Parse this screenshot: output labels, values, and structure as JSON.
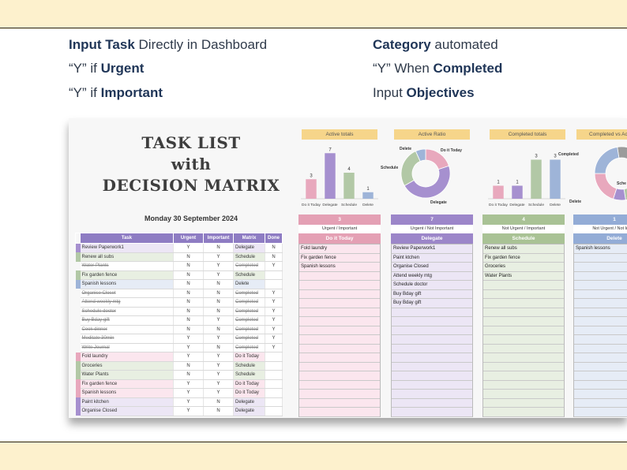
{
  "instructions": {
    "line1_bold1": "Input",
    "line1_bold2": "Task",
    "line1_rest": "Directly in Dashboard",
    "line2_pre": "“Y” if",
    "line2_bold": "Urgent",
    "line3_pre": "“Y” if",
    "line3_bold": "Important",
    "line4_bold": "Category",
    "line4_rest": "automated",
    "line5_pre": "“Y”  When",
    "line5_bold": "Completed",
    "line6_pre": "Input",
    "line6_bold": "Objectives"
  },
  "dashboard": {
    "title_line1": "TASK LIST",
    "title_line2": "with",
    "title_line3": "DECISION MATRIX",
    "date": "Monday 30 September 2024"
  },
  "table": {
    "headers": [
      "Task",
      "Urgent",
      "Important",
      "Matrix",
      "Done"
    ],
    "rows": [
      {
        "task": "Review Paperwork1",
        "urgent": "Y",
        "important": "N",
        "matrix": "Delegate",
        "done": "N",
        "done_flag": false,
        "cat": "delegate"
      },
      {
        "task": "Renew all subs",
        "urgent": "N",
        "important": "Y",
        "matrix": "Schedule",
        "done": "N",
        "done_flag": false,
        "cat": "schedule"
      },
      {
        "task": "Water Plants",
        "urgent": "N",
        "important": "Y",
        "matrix": "Completed",
        "done": "Y",
        "done_flag": true,
        "cat": "none"
      },
      {
        "task": "Fix garden fence",
        "urgent": "N",
        "important": "Y",
        "matrix": "Schedule",
        "done": "",
        "done_flag": false,
        "cat": "schedule"
      },
      {
        "task": "Spanish lessons",
        "urgent": "N",
        "important": "N",
        "matrix": "Delete",
        "done": "",
        "done_flag": false,
        "cat": "delete"
      },
      {
        "task": "Organise Closet",
        "urgent": "N",
        "important": "N",
        "matrix": "Completed",
        "done": "Y",
        "done_flag": true,
        "cat": "none"
      },
      {
        "task": "Attend weekly mtg",
        "urgent": "N",
        "important": "N",
        "matrix": "Completed",
        "done": "Y",
        "done_flag": true,
        "cat": "none"
      },
      {
        "task": "Schedule doctor",
        "urgent": "N",
        "important": "N",
        "matrix": "Completed",
        "done": "Y",
        "done_flag": true,
        "cat": "none"
      },
      {
        "task": "Buy Bday gift",
        "urgent": "N",
        "important": "Y",
        "matrix": "Completed",
        "done": "Y",
        "done_flag": true,
        "cat": "none"
      },
      {
        "task": "Cook dinner",
        "urgent": "N",
        "important": "N",
        "matrix": "Completed",
        "done": "Y",
        "done_flag": true,
        "cat": "none"
      },
      {
        "task": "Meditate 30min",
        "urgent": "Y",
        "important": "Y",
        "matrix": "Completed",
        "done": "Y",
        "done_flag": true,
        "cat": "none"
      },
      {
        "task": "Write Journal",
        "urgent": "Y",
        "important": "N",
        "matrix": "Completed",
        "done": "Y",
        "done_flag": true,
        "cat": "none"
      },
      {
        "task": "Fold laundry",
        "urgent": "Y",
        "important": "Y",
        "matrix": "Do it Today",
        "done": "",
        "done_flag": false,
        "cat": "doit"
      },
      {
        "task": "Groceries",
        "urgent": "N",
        "important": "Y",
        "matrix": "Schedule",
        "done": "",
        "done_flag": false,
        "cat": "schedule"
      },
      {
        "task": "Water Plants",
        "urgent": "N",
        "important": "Y",
        "matrix": "Schedule",
        "done": "",
        "done_flag": false,
        "cat": "schedule"
      },
      {
        "task": "Fix garden fence",
        "urgent": "Y",
        "important": "Y",
        "matrix": "Do it Today",
        "done": "",
        "done_flag": false,
        "cat": "doit"
      },
      {
        "task": "Spanish lessons",
        "urgent": "Y",
        "important": "Y",
        "matrix": "Do it Today",
        "done": "",
        "done_flag": false,
        "cat": "doit"
      },
      {
        "task": "Paint kitchen",
        "urgent": "Y",
        "important": "N",
        "matrix": "Delegate",
        "done": "",
        "done_flag": false,
        "cat": "delegate"
      },
      {
        "task": "Organise Closed",
        "urgent": "Y",
        "important": "N",
        "matrix": "Delegate",
        "done": "",
        "done_flag": false,
        "cat": "delegate"
      }
    ]
  },
  "colors": {
    "doit": "#e8a8bd",
    "delegate": "#a690cf",
    "schedule": "#b2c8a6",
    "delete": "#9eb4d8",
    "doit_light": "#fbe6ee",
    "delegate_light": "#ece6f5",
    "schedule_light": "#e8efe2",
    "delete_light": "#e6ecf6",
    "header": "#8e7cc3",
    "chart_title_bg": "#f6d58a"
  },
  "charts": {
    "active_totals": {
      "title": "Active totals",
      "categories": [
        "Do it Today",
        "Delegate",
        "Schedule",
        "Delete"
      ],
      "values": [
        3,
        7,
        4,
        1
      ],
      "ylim": [
        0,
        8
      ]
    },
    "active_ratio": {
      "title": "Active Ratio",
      "labels": [
        "Do it Today",
        "Delegate",
        "Schedule",
        "Delete"
      ],
      "values": [
        3,
        7,
        4,
        1
      ]
    },
    "completed_totals": {
      "title": "Completed totals",
      "categories": [
        "Do it Today",
        "Delegate",
        "Schedule",
        "Delete"
      ],
      "values": [
        1,
        1,
        3,
        3
      ],
      "ylim": [
        0,
        4
      ]
    },
    "completed_vs_active": {
      "title": "Completed vs Ac",
      "labels": [
        "Completed",
        "Delete",
        "Sche"
      ]
    }
  },
  "matrix_columns": [
    {
      "count": "3",
      "sub": "Urgent / Important",
      "label": "Do it Today",
      "cat": "doit",
      "items": [
        "Fold laundry",
        "Fix garden fence",
        "Spanish lessons"
      ]
    },
    {
      "count": "7",
      "sub": "Urgent / Not Important",
      "label": "Delegate",
      "cat": "delegate",
      "items": [
        "Review Paperwork1",
        "Paint ktchen",
        "Organise Closed",
        "Attend weekly mtg",
        "Schedule doctor",
        "Buy Bday gift",
        "Buy Bday gift"
      ]
    },
    {
      "count": "4",
      "sub": "Not Urgent / Important",
      "label": "Schedule",
      "cat": "schedule",
      "items": [
        "Renew all subs",
        "Fix garden fence",
        "Groceries",
        "Water Plants"
      ]
    },
    {
      "count": "1",
      "sub": "Not Urgent / Not Impor",
      "label": "Delete",
      "cat": "delete",
      "items": [
        "Spanish lessons"
      ]
    }
  ]
}
